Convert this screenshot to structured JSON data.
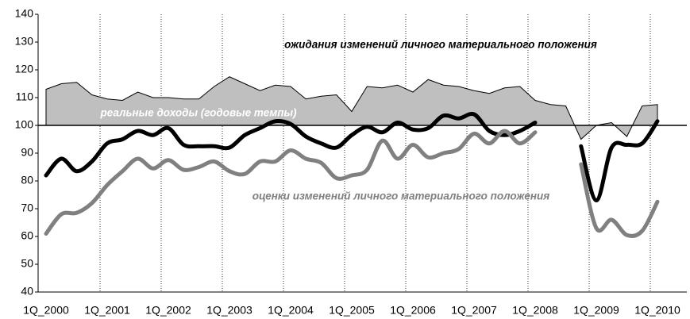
{
  "chart_data": {
    "type": "line",
    "categories": [
      "1Q_2000",
      null,
      null,
      null,
      "1Q_2001",
      null,
      null,
      null,
      "1Q_2002",
      null,
      null,
      null,
      "1Q_2003",
      null,
      null,
      null,
      "1Q_2004",
      null,
      null,
      null,
      "1Q_2005",
      null,
      null,
      null,
      "1Q_2006",
      null,
      null,
      null,
      "1Q_2007",
      null,
      null,
      null,
      "1Q_2008",
      null,
      null,
      null,
      "1Q_2009",
      null,
      null,
      null,
      "1Q_2010"
    ],
    "ylim": [
      40,
      140
    ],
    "yticks": [
      40,
      50,
      60,
      70,
      80,
      90,
      100,
      110,
      120,
      130,
      140
    ],
    "baseline": 100,
    "grid": true,
    "series": [
      {
        "name": "реальные доходы (годовые темпы)",
        "kind": "area",
        "color": "#bfbfbf",
        "values": [
          113,
          115,
          115.5,
          111,
          109.5,
          109,
          112,
          110,
          110,
          109.5,
          109.5,
          114,
          117.5,
          115,
          112.5,
          114.5,
          114,
          109.5,
          110.5,
          111,
          105,
          114,
          113.5,
          114.5,
          112,
          116.5,
          114.5,
          114,
          112.5,
          111.5,
          113.5,
          114,
          109,
          107.5,
          107,
          95,
          100,
          101,
          96,
          107,
          107.5
        ]
      },
      {
        "name": "ожидания изменений личного материального положения",
        "kind": "line",
        "color": "#000000",
        "values": [
          82,
          88,
          83.5,
          87,
          93.5,
          95,
          98,
          96.5,
          99,
          93,
          92.5,
          92.5,
          92,
          96.5,
          99,
          101.5,
          100.5,
          96,
          93.5,
          92,
          96.5,
          99.5,
          97.5,
          101,
          98.5,
          99,
          103.5,
          102.5,
          104,
          98,
          96.5,
          98,
          101,
          null,
          null,
          92.5,
          73,
          92,
          93,
          93.5,
          101.5
        ]
      },
      {
        "name": "оценки изменений личного материального положения",
        "kind": "line",
        "color": "#808080",
        "values": [
          61,
          68,
          68.5,
          72,
          78.5,
          83.5,
          88,
          84.5,
          87.5,
          84,
          85,
          87,
          83.5,
          82.5,
          87,
          87,
          91,
          88,
          86.5,
          81,
          82,
          84,
          94.5,
          88,
          93,
          88.5,
          90,
          91.5,
          97,
          93.5,
          98,
          93.5,
          97.5,
          null,
          null,
          86,
          63,
          66,
          60.5,
          62,
          72.5
        ]
      }
    ]
  }
}
